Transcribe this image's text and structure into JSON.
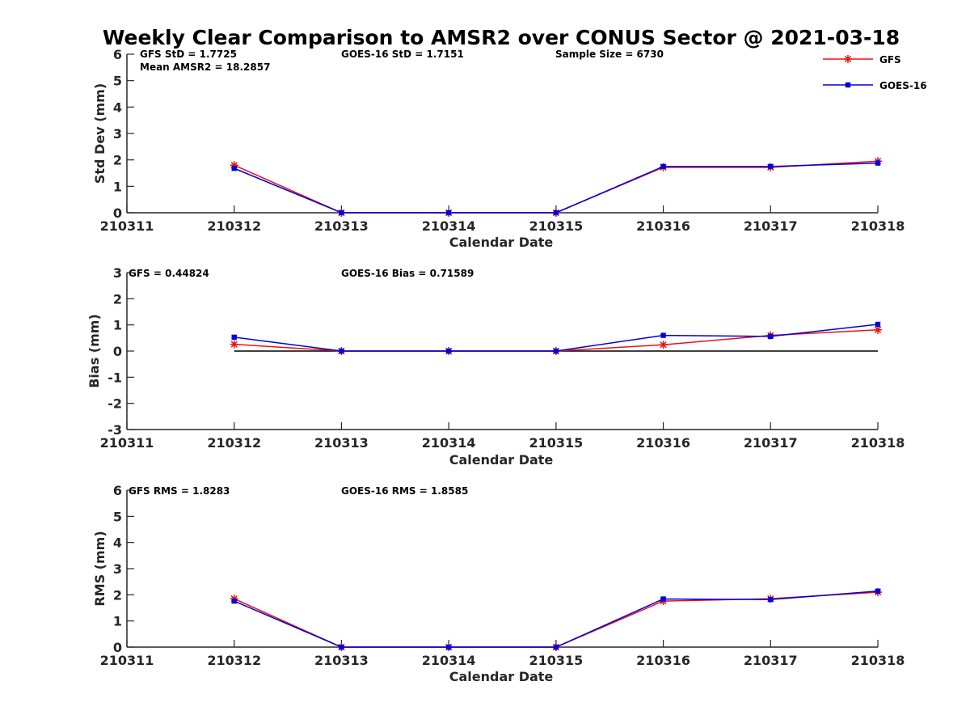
{
  "title": "Weekly Clear Comparison to AMSR2 over CONUS Sector @ 2021-03-18",
  "colors": {
    "GFS": "#ee1111",
    "GOES-16": "#0000dd",
    "zero_line": "#000000",
    "axes": "#262626"
  },
  "legend": {
    "placement": "top-right",
    "entries": [
      {
        "name": "GFS",
        "color": "#ee1111",
        "marker": "asterisk"
      },
      {
        "name": "GOES-16",
        "color": "#0000dd",
        "marker": "square"
      }
    ]
  },
  "chart_data": [
    {
      "type": "line",
      "id": "stddev",
      "xlabel": "Calendar Date",
      "ylabel": "Std Dev (mm)",
      "x_ticks": [
        "210311",
        "210312",
        "210313",
        "210314",
        "210315",
        "210316",
        "210317",
        "210318"
      ],
      "x": [
        "210312",
        "210313",
        "210314",
        "210315",
        "210316",
        "210317",
        "210318"
      ],
      "ylim": [
        0,
        6
      ],
      "y_ticks": [
        0,
        1,
        2,
        3,
        4,
        5,
        6
      ],
      "zero_line": false,
      "series": [
        {
          "name": "GFS",
          "values": [
            1.8,
            0.0,
            0.0,
            0.0,
            1.72,
            1.72,
            1.95
          ]
        },
        {
          "name": "GOES-16",
          "values": [
            1.68,
            0.0,
            0.0,
            0.0,
            1.75,
            1.75,
            1.88
          ]
        }
      ],
      "annotations": [
        "GFS StD = 1.7725",
        "Mean AMSR2 = 18.2857",
        "GOES-16 StD = 1.7151",
        "Sample Size = 6730"
      ]
    },
    {
      "type": "line",
      "id": "bias",
      "xlabel": "Calendar Date",
      "ylabel": "Bias (mm)",
      "x_ticks": [
        "210311",
        "210312",
        "210313",
        "210314",
        "210315",
        "210316",
        "210317",
        "210318"
      ],
      "x": [
        "210312",
        "210313",
        "210314",
        "210315",
        "210316",
        "210317",
        "210318"
      ],
      "ylim": [
        -3,
        3
      ],
      "y_ticks": [
        -3,
        -2,
        -1,
        0,
        1,
        2,
        3
      ],
      "zero_line": true,
      "series": [
        {
          "name": "GFS",
          "values": [
            0.26,
            0.0,
            0.0,
            0.0,
            0.24,
            0.6,
            0.81
          ]
        },
        {
          "name": "GOES-16",
          "values": [
            0.53,
            0.0,
            0.0,
            0.0,
            0.6,
            0.56,
            1.02
          ]
        }
      ],
      "annotations": [
        "GFS = 0.44824",
        "GOES-16 Bias  = 0.71589"
      ]
    },
    {
      "type": "line",
      "id": "rms",
      "xlabel": "Calendar Date",
      "ylabel": "RMS (mm)",
      "x_ticks": [
        "210311",
        "210312",
        "210313",
        "210314",
        "210315",
        "210316",
        "210317",
        "210318"
      ],
      "x": [
        "210312",
        "210313",
        "210314",
        "210315",
        "210316",
        "210317",
        "210318"
      ],
      "ylim": [
        0,
        6
      ],
      "y_ticks": [
        0,
        1,
        2,
        3,
        4,
        5,
        6
      ],
      "zero_line": false,
      "series": [
        {
          "name": "GFS",
          "values": [
            1.85,
            0.0,
            0.0,
            0.0,
            1.76,
            1.85,
            2.1
          ]
        },
        {
          "name": "GOES-16",
          "values": [
            1.76,
            0.0,
            0.0,
            0.0,
            1.84,
            1.82,
            2.14
          ]
        }
      ],
      "annotations": [
        "GFS RMS = 1.8283",
        "GOES-16 RMS = 1.8585"
      ]
    }
  ]
}
